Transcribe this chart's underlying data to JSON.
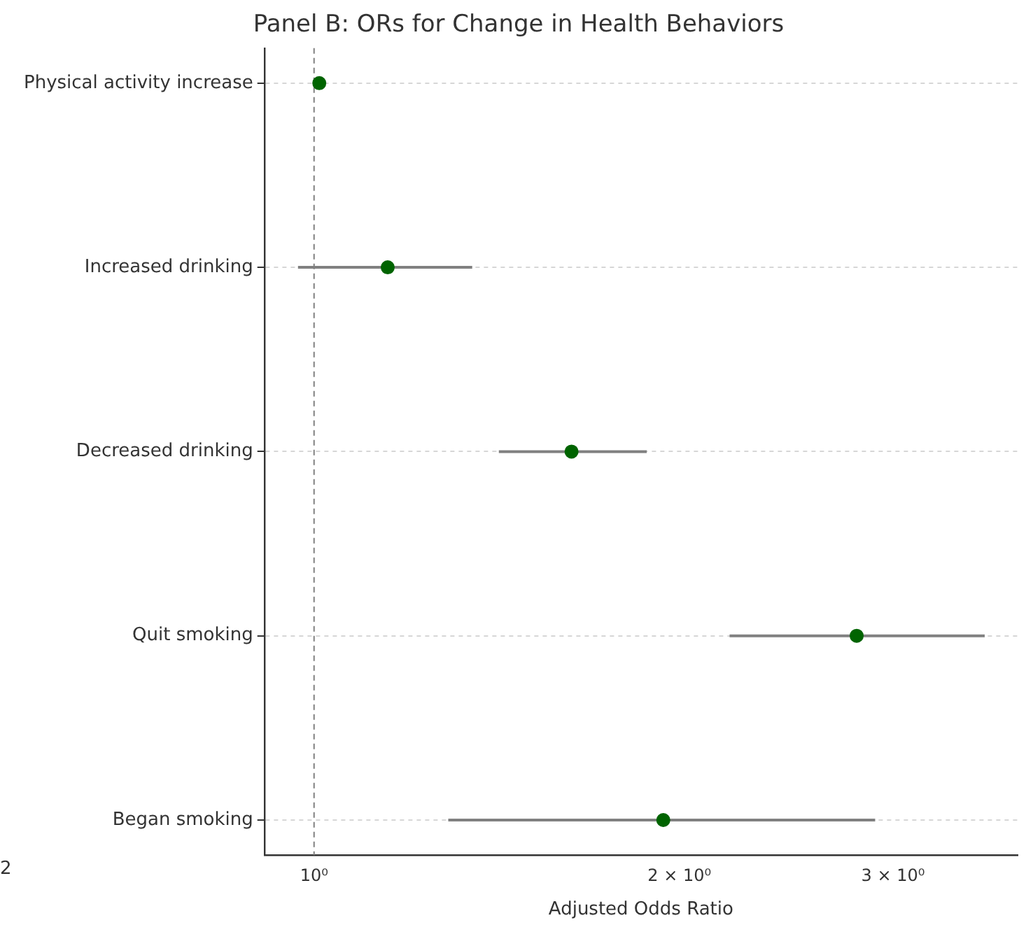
{
  "chart_data": {
    "type": "scatter",
    "orientation": "horizontal",
    "title": "Panel B: ORs for Change in Health Behaviors",
    "xlabel": "Adjusted Odds Ratio",
    "categories": [
      "Physical activity increase",
      "Increased drinking",
      "Decreased drinking",
      "Quit smoking",
      "Began smoking"
    ],
    "color": "#006400",
    "values": [
      1.01,
      1.15,
      1.63,
      2.8,
      1.94
    ],
    "errors": [
      null,
      [
        0.97,
        1.35
      ],
      [
        1.42,
        1.88
      ],
      [
        2.2,
        3.57
      ],
      [
        1.29,
        2.9
      ]
    ],
    "log": "x",
    "xlim": [
      0.91,
      3.8
    ],
    "xticks": [
      {
        "value": 1,
        "label": "10⁰"
      },
      {
        "value": 2,
        "label": "2 × 10⁰"
      },
      {
        "value": 3,
        "label": "3 × 10⁰"
      }
    ],
    "ref_lines": [
      {
        "axis": "x",
        "value": 1,
        "color": "#808080",
        "line_style": "dashed"
      }
    ],
    "grid": "y",
    "marker": "circle",
    "legend": false,
    "annotations": [
      "2"
    ]
  }
}
